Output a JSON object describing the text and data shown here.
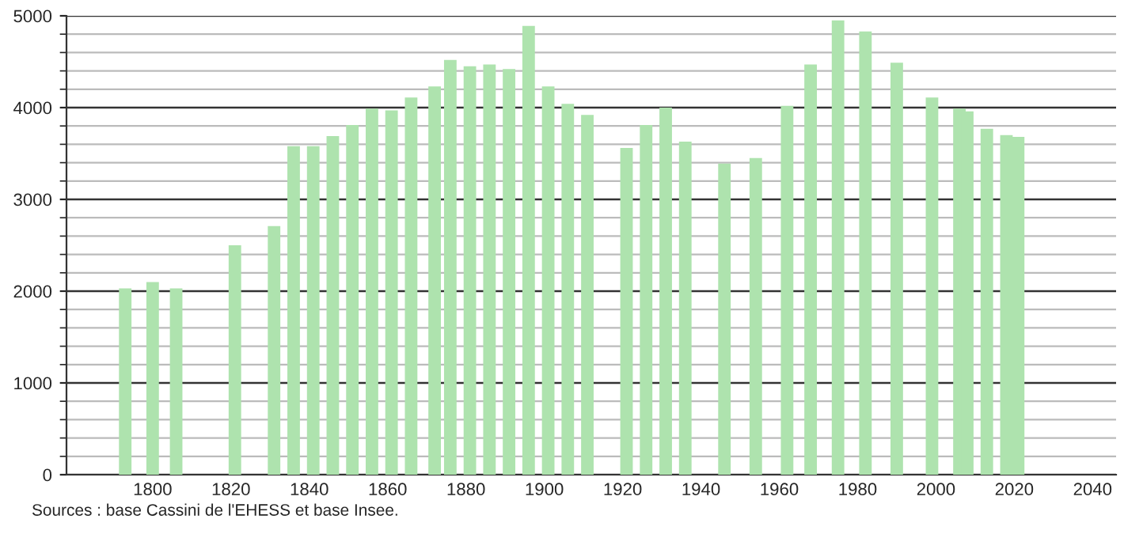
{
  "chart_data": {
    "type": "bar",
    "x": [
      1793,
      1800,
      1806,
      1821,
      1831,
      1836,
      1841,
      1846,
      1851,
      1856,
      1861,
      1866,
      1872,
      1876,
      1881,
      1886,
      1891,
      1896,
      1901,
      1906,
      1911,
      1921,
      1926,
      1931,
      1936,
      1946,
      1954,
      1962,
      1968,
      1975,
      1982,
      1990,
      1999,
      2006,
      2008,
      2013,
      2018,
      2021
    ],
    "values": [
      2030,
      2100,
      2030,
      2500,
      2710,
      3580,
      3580,
      3690,
      3810,
      3990,
      3970,
      4110,
      4230,
      4520,
      4450,
      4470,
      4420,
      4890,
      4230,
      4040,
      3920,
      3560,
      3810,
      4000,
      3630,
      3390,
      3450,
      4020,
      4470,
      4950,
      4830,
      4490,
      4110,
      3990,
      3960,
      3770,
      3700,
      3680
    ],
    "color": "#aee3ae",
    "xlim": [
      1778,
      2046
    ],
    "xticks": [
      1800,
      1820,
      1840,
      1860,
      1880,
      1900,
      1920,
      1940,
      1960,
      1980,
      2000,
      2020,
      2040
    ],
    "ylim": [
      0,
      5000
    ],
    "yticks": [
      0,
      1000,
      2000,
      3000,
      4000,
      5000
    ],
    "grid": "y",
    "annotations": [
      "Sources : base Cassini de l'EHESS et base Insee."
    ]
  }
}
